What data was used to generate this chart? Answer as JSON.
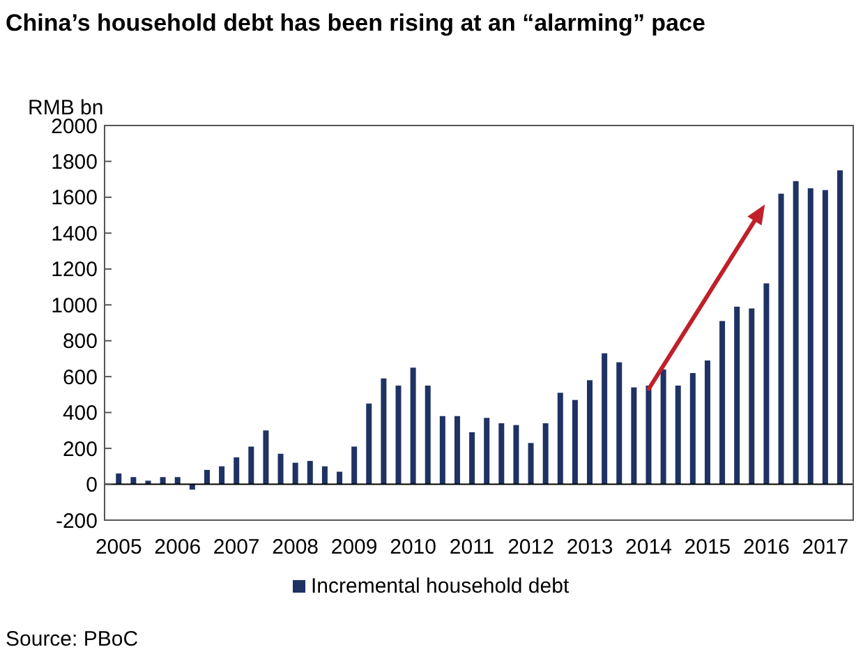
{
  "chart_data": {
    "type": "bar",
    "title": "China’s household debt has been rising at an “alarming” pace",
    "ylabel": "RMB bn",
    "x": [
      2005.125,
      2005.375,
      2005.625,
      2005.875,
      2006.125,
      2006.375,
      2006.625,
      2006.875,
      2007.125,
      2007.375,
      2007.625,
      2007.875,
      2008.125,
      2008.375,
      2008.625,
      2008.875,
      2009.125,
      2009.375,
      2009.625,
      2009.875,
      2010.125,
      2010.375,
      2010.625,
      2010.875,
      2011.125,
      2011.375,
      2011.625,
      2011.875,
      2012.125,
      2012.375,
      2012.625,
      2012.875,
      2013.125,
      2013.375,
      2013.625,
      2013.875,
      2014.125,
      2014.375,
      2014.625,
      2014.875,
      2015.125,
      2015.375,
      2015.625,
      2015.875,
      2016.125,
      2016.375,
      2016.625,
      2016.875,
      2017.125,
      2017.375
    ],
    "series": [
      {
        "name": "Incremental household debt",
        "color": "#1f3264",
        "values": [
          60,
          40,
          20,
          40,
          40,
          -30,
          80,
          100,
          150,
          210,
          300,
          170,
          120,
          130,
          100,
          70,
          210,
          450,
          590,
          550,
          650,
          550,
          380,
          380,
          290,
          370,
          340,
          330,
          230,
          340,
          510,
          470,
          580,
          730,
          680,
          540,
          550,
          640,
          550,
          620,
          690,
          910,
          990,
          980,
          1120,
          1620,
          1690,
          1650,
          1640,
          1750
        ]
      }
    ],
    "xlim": [
      2004.885,
      2017.6
    ],
    "xticks": [
      {
        "value": 2005.125,
        "label": "2005"
      },
      {
        "value": 2006.125,
        "label": "2006"
      },
      {
        "value": 2007.125,
        "label": "2007"
      },
      {
        "value": 2008.125,
        "label": "2008"
      },
      {
        "value": 2009.125,
        "label": "2009"
      },
      {
        "value": 2010.125,
        "label": "2010"
      },
      {
        "value": 2011.125,
        "label": "2011"
      },
      {
        "value": 2012.125,
        "label": "2012"
      },
      {
        "value": 2013.125,
        "label": "2013"
      },
      {
        "value": 2014.125,
        "label": "2014"
      },
      {
        "value": 2015.125,
        "label": "2015"
      },
      {
        "value": 2016.125,
        "label": "2016"
      },
      {
        "value": 2017.125,
        "label": "2017"
      }
    ],
    "ylim": [
      -200,
      2000
    ],
    "yticks": [
      -200,
      0,
      200,
      400,
      600,
      800,
      1000,
      1200,
      1400,
      1600,
      1800,
      2000
    ],
    "legend": "bottom",
    "annotations": [
      "Source: PBoC"
    ]
  }
}
